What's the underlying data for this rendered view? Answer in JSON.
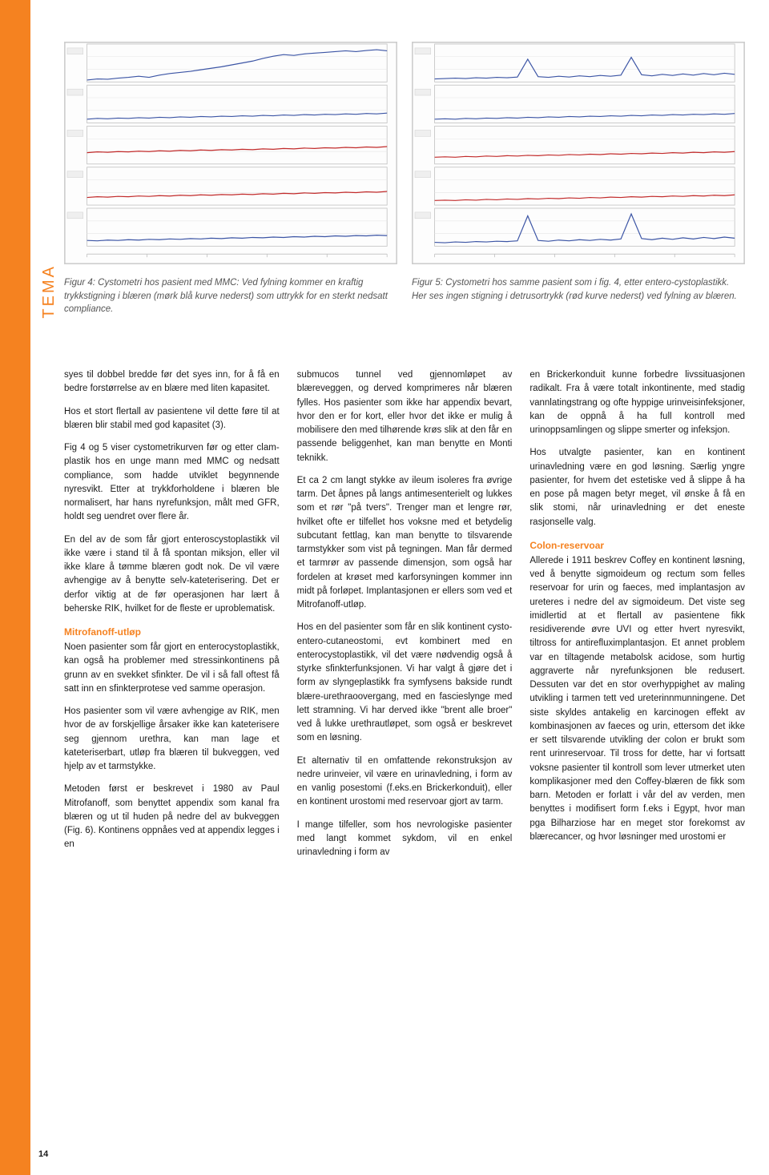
{
  "layout": {
    "accent_color": "#f58220",
    "body_text_color": "#1a1a1a",
    "caption_text_color": "#555555",
    "background": "#ffffff"
  },
  "sidebar_label": "TEMA",
  "page_number": "14",
  "chart_left": {
    "type": "waveform-panel",
    "channels": 5,
    "panel_bg": "#fdfdfd",
    "grid_color": "#e6e6e6",
    "frame_color": "#bfbfbf",
    "line_colors": [
      "#3c55a5",
      "#3c55a5",
      "#c22b2b",
      "#c22b2b",
      "#3c55a5"
    ],
    "line_width": 1.2,
    "x_range": [
      0,
      100
    ],
    "y_range": [
      0,
      100
    ],
    "series": [
      [
        5,
        8,
        7,
        10,
        12,
        15,
        12,
        18,
        22,
        25,
        28,
        32,
        36,
        40,
        45,
        50,
        55,
        62,
        68,
        72,
        70,
        74,
        76,
        78,
        80,
        82,
        80,
        83,
        85,
        82
      ],
      [
        10,
        12,
        11,
        13,
        12,
        14,
        13,
        15,
        14,
        16,
        15,
        17,
        16,
        18,
        17,
        19,
        18,
        20,
        19,
        21,
        20,
        22,
        21,
        23,
        22,
        24,
        23,
        25,
        24,
        26
      ],
      [
        30,
        32,
        31,
        33,
        32,
        34,
        33,
        35,
        34,
        36,
        35,
        37,
        36,
        38,
        37,
        39,
        38,
        40,
        39,
        41,
        40,
        42,
        41,
        43,
        42,
        44,
        43,
        45,
        44,
        46
      ],
      [
        20,
        22,
        21,
        23,
        22,
        24,
        23,
        25,
        24,
        26,
        25,
        27,
        26,
        28,
        27,
        29,
        28,
        30,
        29,
        31,
        30,
        32,
        31,
        33,
        32,
        34,
        33,
        35,
        34,
        36
      ],
      [
        15,
        14,
        16,
        15,
        17,
        16,
        18,
        17,
        19,
        18,
        20,
        19,
        21,
        20,
        22,
        21,
        23,
        22,
        24,
        23,
        25,
        24,
        26,
        25,
        27,
        26,
        28,
        27,
        29,
        28
      ]
    ]
  },
  "chart_right": {
    "type": "waveform-panel",
    "channels": 5,
    "panel_bg": "#fdfdfd",
    "grid_color": "#e6e6e6",
    "frame_color": "#bfbfbf",
    "line_colors": [
      "#3c55a5",
      "#3c55a5",
      "#c22b2b",
      "#c22b2b",
      "#3c55a5"
    ],
    "line_width": 1.2,
    "x_range": [
      0,
      100
    ],
    "y_range": [
      0,
      100
    ],
    "series": [
      [
        8,
        9,
        10,
        9,
        11,
        10,
        12,
        11,
        13,
        60,
        14,
        12,
        15,
        13,
        16,
        14,
        17,
        15,
        18,
        65,
        19,
        16,
        20,
        17,
        21,
        18,
        22,
        19,
        23,
        20
      ],
      [
        10,
        11,
        10,
        12,
        11,
        13,
        12,
        14,
        13,
        15,
        14,
        16,
        15,
        17,
        16,
        18,
        17,
        19,
        18,
        20,
        19,
        21,
        20,
        22,
        21,
        23,
        22,
        24,
        23,
        25
      ],
      [
        18,
        19,
        18,
        20,
        19,
        21,
        20,
        22,
        21,
        23,
        22,
        24,
        23,
        25,
        24,
        26,
        25,
        27,
        26,
        28,
        27,
        29,
        28,
        30,
        29,
        31,
        30,
        32,
        31,
        33
      ],
      [
        12,
        13,
        12,
        14,
        13,
        15,
        14,
        16,
        15,
        17,
        16,
        18,
        17,
        19,
        18,
        20,
        19,
        21,
        20,
        22,
        21,
        23,
        22,
        24,
        23,
        25,
        24,
        26,
        25,
        27
      ],
      [
        10,
        9,
        11,
        10,
        12,
        11,
        13,
        12,
        14,
        80,
        15,
        13,
        16,
        14,
        17,
        15,
        18,
        16,
        19,
        85,
        20,
        17,
        21,
        18,
        22,
        19,
        23,
        20,
        24,
        21
      ]
    ]
  },
  "caption_left": "Figur 4: Cystometri hos pasient med MMC: Ved fylning kommer en kraftig trykkstigning i blæren (mørk blå kurve nederst) som uttrykk for en sterkt nedsatt compliance.",
  "caption_right": "Figur 5: Cystometri hos samme pasient som i fig. 4, etter entero-cystoplastikk. Her ses ingen stigning i detrusortrykk (rød kurve nederst) ved fylning av blæren.",
  "col1": {
    "p1": "syes til dobbel bredde før det syes inn, for å få en bedre forstørrelse av en blære med liten kapasitet.",
    "p2": "Hos et stort flertall av pasientene vil dette føre til at blæren blir stabil med god kapasitet (3).",
    "p3": "Fig 4 og 5 viser cystometrikurven før og etter clam-plastik hos en unge mann med MMC og nedsatt compliance, som hadde utviklet begynnende nyresvikt. Etter at trykkforholdene i blæren ble normalisert, har hans nyrefunksjon, målt med GFR, holdt seg uendret over flere år.",
    "p4": "En del av de som får gjort enteroscystoplastikk vil ikke være i stand til å få spontan miksjon, eller vil ikke klare å tømme blæren godt nok. De vil være avhengige av å benytte selv-kateterisering. Det er derfor viktig at de før operasjonen har lært å beherske RIK, hvilket for de fleste er uproblematisk.",
    "h1": "Mitrofanoff-utløp",
    "p5": "Noen pasienter som får gjort en enterocystoplastikk, kan også ha problemer med stressinkontinens på grunn av en svekket sfinkter. De vil i så fall oftest få satt inn en sfinkterprotese ved samme operasjon.",
    "p6": "Hos pasienter som vil være avhengige av RIK, men hvor de av forskjellige årsaker ikke kan kateterisere seg gjennom urethra, kan man lage et kateteriserbart, utløp fra blæren til bukveggen, ved hjelp av et tarmstykke.",
    "p7": "Metoden først er beskrevet i 1980 av Paul Mitrofanoff, som benyttet appendix som kanal fra blæren og ut til huden på nedre del av bukveggen (Fig. 6). Kontinens oppnåes ved at appendix legges i en"
  },
  "col2": {
    "p1": "submucos tunnel ved gjennomløpet av blæreveggen, og derved komprimeres når blæren fylles. Hos pasienter som ikke har appendix bevart, hvor den er for kort, eller hvor det ikke er mulig å mobilisere den med tilhørende krøs slik at den får en passende beliggenhet, kan man benytte en Monti teknikk.",
    "p2": "Et ca 2 cm langt stykke av ileum isoleres fra øvrige tarm. Det åpnes på langs antimesenterielt og lukkes som et rør \"på tvers\". Trenger man et lengre rør, hvilket ofte er tilfellet hos voksne med et betydelig subcutant fettlag, kan man benytte to tilsvarende tarmstykker som vist på tegningen. Man får dermed et tarmrør av passende dimensjon, som også har fordelen at krøset med karforsyningen kommer inn midt på forløpet. Implantasjonen er ellers som ved et Mitrofanoff-utløp.",
    "p3": "Hos en del pasienter som får en slik kontinent cysto-entero-cutaneostomi, evt kombinert med en enterocystoplastikk, vil det være nødvendig også å styrke sfinkterfunksjonen. Vi har valgt å gjøre det i form av slyngeplastikk fra symfysens bakside rundt blære-urethraoovergang, med en fascieslynge med lett stramning. Vi har derved ikke \"brent alle broer\" ved å lukke urethrautløpet, som også er beskrevet som en løsning.",
    "p4": "Et alternativ til en omfattende rekonstruksjon av nedre urinveier, vil være en urinavledning, i form av en vanlig posestomi (f.eks.en Brickerkonduit), eller en kontinent urostomi med reservoar gjort av tarm.",
    "p5": "I mange tilfeller, som hos nevrologiske pasienter med langt kommet sykdom, vil en enkel urinavledning i form av"
  },
  "col3": {
    "p1": "en Brickerkonduit kunne forbedre livssituasjonen radikalt. Fra å være totalt inkontinente, med stadig vannlatingstrang og ofte hyppige urinveisinfeksjoner, kan de oppnå å ha full kontroll med urinoppsamlingen og slippe smerter og infeksjon.",
    "p2": "Hos utvalgte pasienter, kan en kontinent urinavledning være en god løsning. Særlig yngre pasienter, for hvem det estetiske ved å slippe å ha en pose på magen betyr meget, vil ønske å få en slik stomi, når urinavledning er det eneste rasjonselle valg.",
    "h1": "Colon-reservoar",
    "p3": "Allerede i 1911 beskrev Coffey en kontinent løsning, ved å benytte sigmoideum og rectum som felles reservoar for urin og faeces, med implantasjon av ureteres i nedre del av sigmoideum. Det viste seg imidlertid at et flertall av pasientene fikk residiverende øvre UVI og etter hvert nyresvikt, tiltross for antirefluximplantasjon. Et annet problem var en tiltagende metabolsk acidose, som hurtig aggraverte når nyrefunksjonen ble redusert. Dessuten var det en stor overhyppighet av maling utvikling i tarmen tett ved ureterinnmunningene. Det siste skyldes antakelig en karcinogen effekt av kombinasjonen av faeces og urin, ettersom det ikke er sett tilsvarende utvikling der colon er brukt som rent urinreservoar. Til tross for dette, har vi fortsatt voksne pasienter til kontroll som lever utmerket uten komplikasjoner med den Coffey-blæren de fikk som barn. Metoden er forlatt i vår del av verden, men benyttes i modifisert form f.eks i Egypt, hvor man pga Bilharziose har en meget stor forekomst av blærecancer, og hvor løsninger med urostomi er"
  }
}
